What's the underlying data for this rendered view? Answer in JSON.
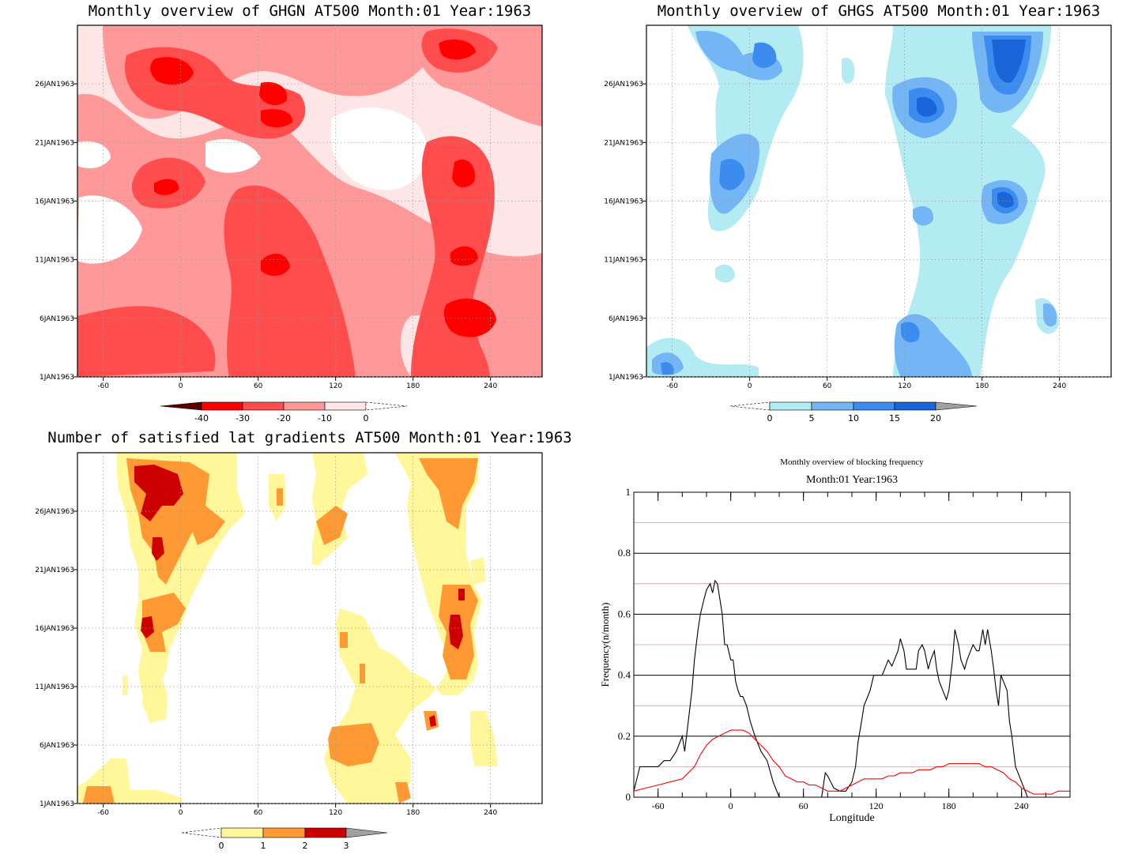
{
  "colors": {
    "reds": [
      "#5a0000",
      "#ff0000",
      "#ff4d4d",
      "#ff9999",
      "#ffe6e6",
      "#ffffff"
    ],
    "blues": [
      "#ffffff",
      "#b2ebf2",
      "#73b5f5",
      "#3c8cf0",
      "#1a66d9",
      "#a0a0a0"
    ],
    "yellows": [
      "#ffffff",
      "#fff799",
      "#ff9933",
      "#cc0000",
      "#a0a0a0"
    ],
    "line_total": "#000000",
    "line_mean": "#ff0000",
    "grid_light": "#c0a0a0"
  },
  "chart_data": [
    {
      "type": "heatmap",
      "title": "Monthly overview of GHGN AT500 Month:01 Year:1963",
      "x_ticks": [
        "-60",
        "0",
        "60",
        "120",
        "180",
        "240"
      ],
      "y_ticks": [
        "1JAN1963",
        "6JAN1963",
        "11JAN1963",
        "16JAN1963",
        "21JAN1963",
        "26JAN1963"
      ],
      "xlim": [
        -80,
        280
      ],
      "ylim": [
        1,
        31
      ],
      "colorbar": [
        "-40",
        "-30",
        "-20",
        "-10",
        "0"
      ],
      "grid": true
    },
    {
      "type": "heatmap",
      "title": "Monthly overview of GHGS AT500 Month:01 Year:1963",
      "x_ticks": [
        "-60",
        "0",
        "60",
        "120",
        "180",
        "240"
      ],
      "y_ticks": [
        "1JAN1963",
        "6JAN1963",
        "11JAN1963",
        "16JAN1963",
        "21JAN1963",
        "26JAN1963"
      ],
      "xlim": [
        -80,
        280
      ],
      "ylim": [
        1,
        31
      ],
      "colorbar": [
        "0",
        "5",
        "10",
        "15",
        "20"
      ],
      "grid": true
    },
    {
      "type": "heatmap",
      "title": "Number of satisfied lat gradients AT500 Month:01 Year:1963",
      "x_ticks": [
        "-60",
        "0",
        "60",
        "120",
        "180",
        "240"
      ],
      "y_ticks": [
        "1JAN1963",
        "6JAN1963",
        "11JAN1963",
        "16JAN1963",
        "21JAN1963",
        "26JAN1963"
      ],
      "xlim": [
        -80,
        280
      ],
      "ylim": [
        1,
        31
      ],
      "colorbar": [
        "0",
        "1",
        "2",
        "3"
      ],
      "grid": true
    },
    {
      "type": "line",
      "title": "Monthly overview of blocking frequency",
      "subtitle": "Month:01 Year:1963",
      "xlabel": "Longitude",
      "ylabel": "Frequency(n/month)",
      "x_ticks": [
        "-60",
        "0",
        "60",
        "120",
        "180",
        "240"
      ],
      "y_ticks": [
        "0",
        "0.2",
        "0.4",
        "0.6",
        "0.8",
        "1"
      ],
      "xlim": [
        -80,
        280
      ],
      "ylim": [
        0,
        1
      ],
      "series": [
        {
          "x": [
            -80,
            -75,
            -70,
            -65,
            -60,
            -55,
            -50,
            -45,
            -42,
            -40,
            -38,
            -35,
            -32,
            -30,
            -27,
            -25,
            -22,
            -20,
            -17,
            -15,
            -13,
            -11,
            -9,
            -7,
            -5,
            -3,
            0,
            2,
            4,
            6,
            8,
            10,
            13,
            16,
            20,
            25,
            30,
            35,
            40,
            45,
            50,
            55,
            60,
            65,
            70,
            75,
            78,
            80,
            85,
            90,
            95,
            100,
            103,
            105,
            108,
            110,
            115,
            118,
            120,
            125,
            130,
            133,
            135,
            138,
            140,
            143,
            145,
            150,
            153,
            155,
            158,
            160,
            163,
            165,
            168,
            170,
            172,
            175,
            178,
            180,
            183,
            185,
            188,
            190,
            193,
            195,
            198,
            200,
            203,
            205,
            208,
            210,
            212,
            215,
            217,
            219,
            221,
            223,
            225,
            228,
            230,
            232,
            235,
            237,
            240,
            245,
            250,
            255,
            260,
            265,
            270,
            275,
            280
          ],
          "y": [
            0.02,
            0.1,
            0.1,
            0.1,
            0.1,
            0.12,
            0.12,
            0.15,
            0.18,
            0.2,
            0.15,
            0.25,
            0.35,
            0.45,
            0.55,
            0.6,
            0.65,
            0.68,
            0.7,
            0.67,
            0.71,
            0.7,
            0.65,
            0.6,
            0.5,
            0.5,
            0.45,
            0.45,
            0.38,
            0.35,
            0.33,
            0.33,
            0.3,
            0.25,
            0.2,
            0.15,
            0.12,
            0.05,
            0.0,
            0.0,
            0.0,
            0.0,
            0.0,
            0.0,
            0.0,
            0.0,
            0.08,
            0.07,
            0.03,
            0.02,
            0.02,
            0.05,
            0.1,
            0.18,
            0.25,
            0.3,
            0.35,
            0.4,
            0.4,
            0.4,
            0.45,
            0.43,
            0.45,
            0.48,
            0.52,
            0.48,
            0.42,
            0.42,
            0.42,
            0.48,
            0.5,
            0.48,
            0.42,
            0.45,
            0.48,
            0.42,
            0.38,
            0.35,
            0.32,
            0.35,
            0.45,
            0.55,
            0.5,
            0.45,
            0.42,
            0.45,
            0.48,
            0.5,
            0.48,
            0.48,
            0.55,
            0.5,
            0.55,
            0.48,
            0.42,
            0.35,
            0.3,
            0.4,
            0.38,
            0.35,
            0.25,
            0.2,
            0.1,
            0.08,
            0.05,
            0.0,
            0.0,
            0.0,
            0.0,
            0.0,
            0.0,
            0.0,
            0.0
          ]
        },
        {
          "x": [
            -80,
            -70,
            -60,
            -50,
            -40,
            -30,
            -25,
            -20,
            -15,
            -10,
            -5,
            0,
            5,
            10,
            15,
            20,
            25,
            30,
            35,
            40,
            45,
            50,
            55,
            60,
            65,
            70,
            75,
            80,
            85,
            90,
            95,
            100,
            105,
            110,
            115,
            120,
            125,
            130,
            135,
            140,
            145,
            150,
            155,
            160,
            165,
            170,
            175,
            180,
            185,
            190,
            195,
            200,
            205,
            210,
            215,
            220,
            225,
            230,
            235,
            240,
            245,
            250,
            255,
            260,
            265,
            270,
            275,
            280
          ],
          "y": [
            0.02,
            0.03,
            0.04,
            0.05,
            0.06,
            0.1,
            0.14,
            0.17,
            0.19,
            0.2,
            0.21,
            0.22,
            0.22,
            0.22,
            0.21,
            0.19,
            0.17,
            0.15,
            0.12,
            0.1,
            0.07,
            0.06,
            0.05,
            0.05,
            0.04,
            0.04,
            0.03,
            0.02,
            0.02,
            0.02,
            0.03,
            0.04,
            0.05,
            0.06,
            0.06,
            0.06,
            0.06,
            0.07,
            0.07,
            0.08,
            0.08,
            0.08,
            0.09,
            0.09,
            0.09,
            0.1,
            0.1,
            0.11,
            0.11,
            0.11,
            0.11,
            0.11,
            0.11,
            0.1,
            0.1,
            0.09,
            0.08,
            0.06,
            0.05,
            0.03,
            0.02,
            0.01,
            0.01,
            0.01,
            0.01,
            0.02,
            0.02,
            0.02
          ]
        }
      ]
    }
  ]
}
